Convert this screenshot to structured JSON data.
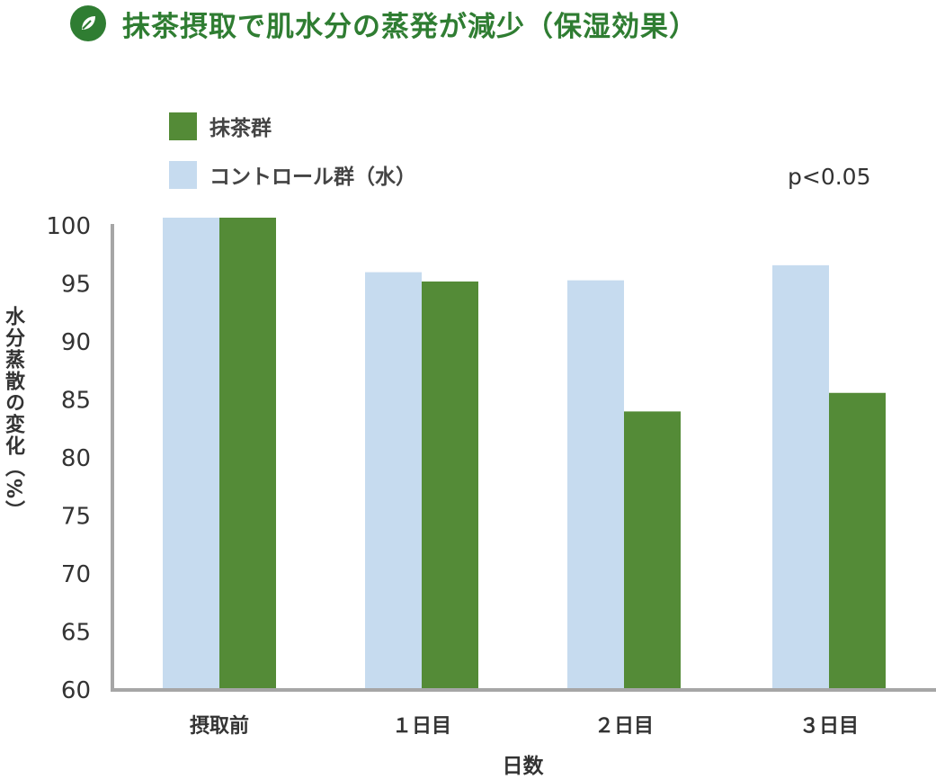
{
  "title": "抹茶摂取で肌水分の蒸発が減少（保湿効果）",
  "icon": "leaf-icon",
  "colors": {
    "accent": "#2f7d32",
    "matcha": "#548b37",
    "control": "#c6dbef",
    "axis": "#a6a6a6"
  },
  "p_value": "p<0.05",
  "chart_data": {
    "type": "bar",
    "title": "抹茶摂取で肌水分の蒸発が減少（保湿効果）",
    "xlabel": "日数",
    "ylabel": "水分蒸散の変化（%）",
    "categories": [
      "摂取前",
      "１日目",
      "２日目",
      "３日目"
    ],
    "ylim": [
      60,
      100
    ],
    "yticks": [
      100,
      95,
      90,
      85,
      80,
      75,
      70,
      65,
      60
    ],
    "legend_position": "top-left",
    "series": [
      {
        "name": "コントロール群（水）",
        "color": "#c6dbef",
        "values": [
          100.7,
          96.0,
          95.3,
          96.6
        ]
      },
      {
        "name": "抹茶群",
        "color": "#548b37",
        "values": [
          100.7,
          95.2,
          84.0,
          85.6
        ]
      }
    ]
  }
}
